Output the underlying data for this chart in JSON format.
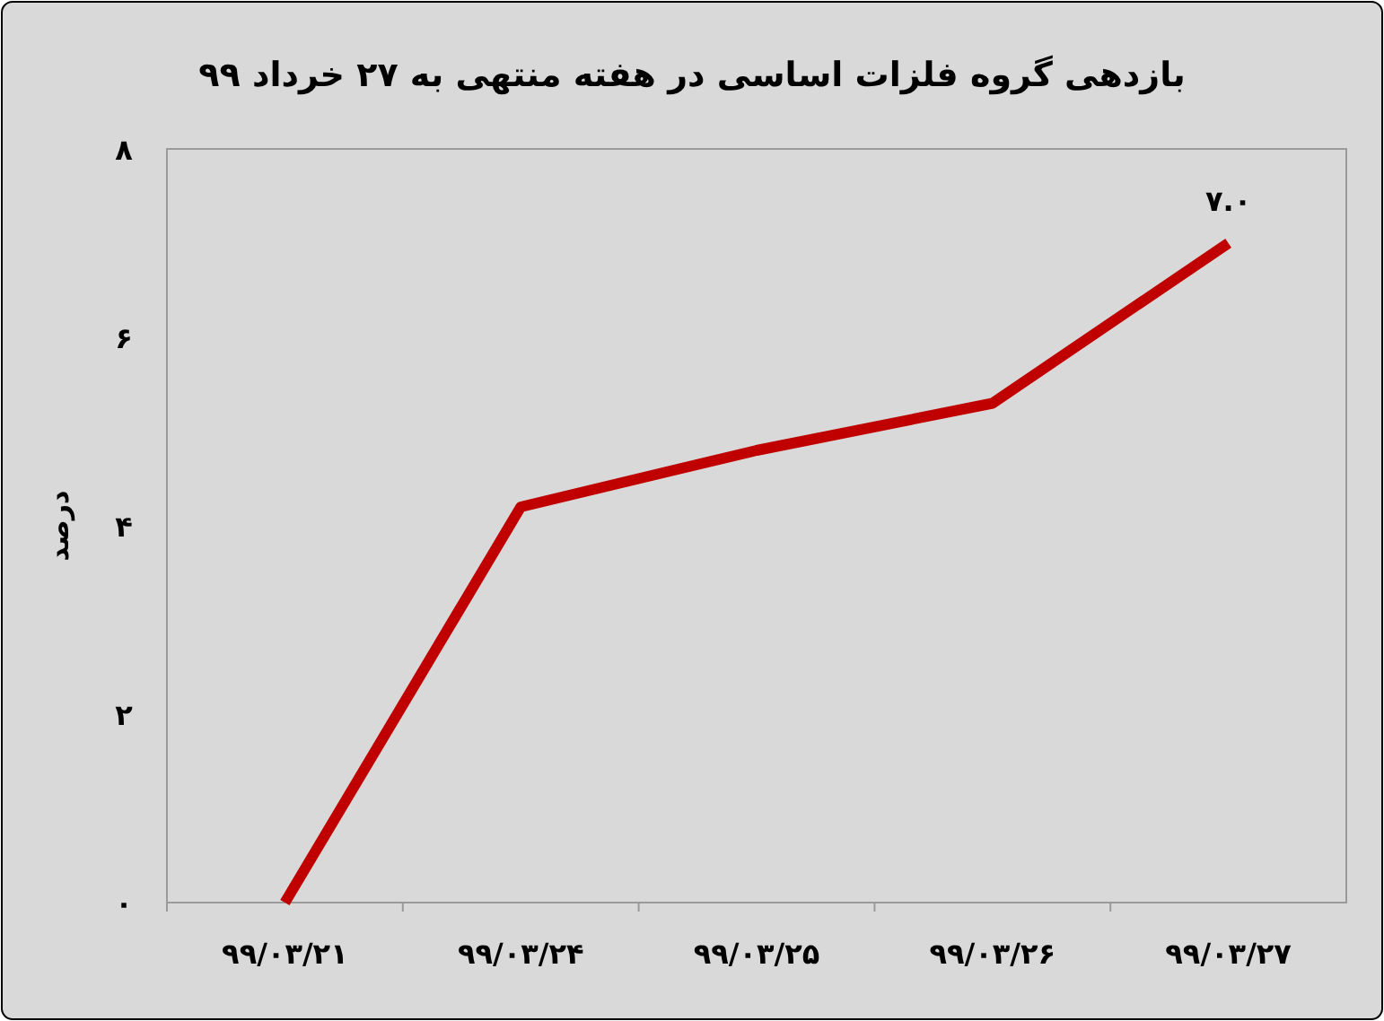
{
  "chart_data": {
    "type": "line",
    "title": "بازدهی گروه فلزات اساسی در هفته منتهی به ۲۷ خرداد ۹۹",
    "ylabel": "درصد",
    "categories": [
      "۹۹/۰۳/۲۱",
      "۹۹/۰۳/۲۴",
      "۹۹/۰۳/۲۵",
      "۹۹/۰۳/۲۶",
      "۹۹/۰۳/۲۷"
    ],
    "series": [
      {
        "color": "#c00000",
        "values": [
          0,
          4.2,
          4.8,
          5.3,
          7.0
        ],
        "value_labels": [
          null,
          null,
          null,
          null,
          "۷.۰"
        ]
      }
    ],
    "ylim": [
      0,
      8
    ],
    "yticks": [
      {
        "value": 0,
        "label": "۰"
      },
      {
        "value": 2,
        "label": "۲"
      },
      {
        "value": 4,
        "label": "۴"
      },
      {
        "value": 6,
        "label": "۶"
      },
      {
        "value": 8,
        "label": "۸"
      }
    ],
    "line_style": "solid"
  }
}
